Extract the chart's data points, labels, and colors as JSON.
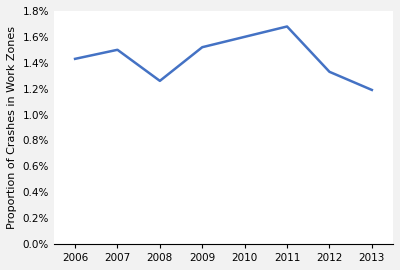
{
  "years": [
    2006,
    2007,
    2008,
    2009,
    2010,
    2011,
    2012,
    2013
  ],
  "values": [
    0.0143,
    0.015,
    0.0126,
    0.0152,
    0.016,
    0.0168,
    0.0133,
    0.0119
  ],
  "line_color": "#4472C4",
  "line_width": 1.8,
  "ylabel": "Proportion of Crashes in Work Zones",
  "ylim": [
    0.0,
    0.018
  ],
  "yticks": [
    0.0,
    0.002,
    0.004,
    0.006,
    0.008,
    0.01,
    0.012,
    0.014,
    0.016,
    0.018
  ],
  "xlim": [
    2005.5,
    2013.5
  ],
  "xticks": [
    2006,
    2007,
    2008,
    2009,
    2010,
    2011,
    2012,
    2013
  ],
  "background_color": "#f2f2f2",
  "plot_background_color": "#ffffff",
  "ylabel_fontsize": 8,
  "tick_fontsize": 7.5
}
